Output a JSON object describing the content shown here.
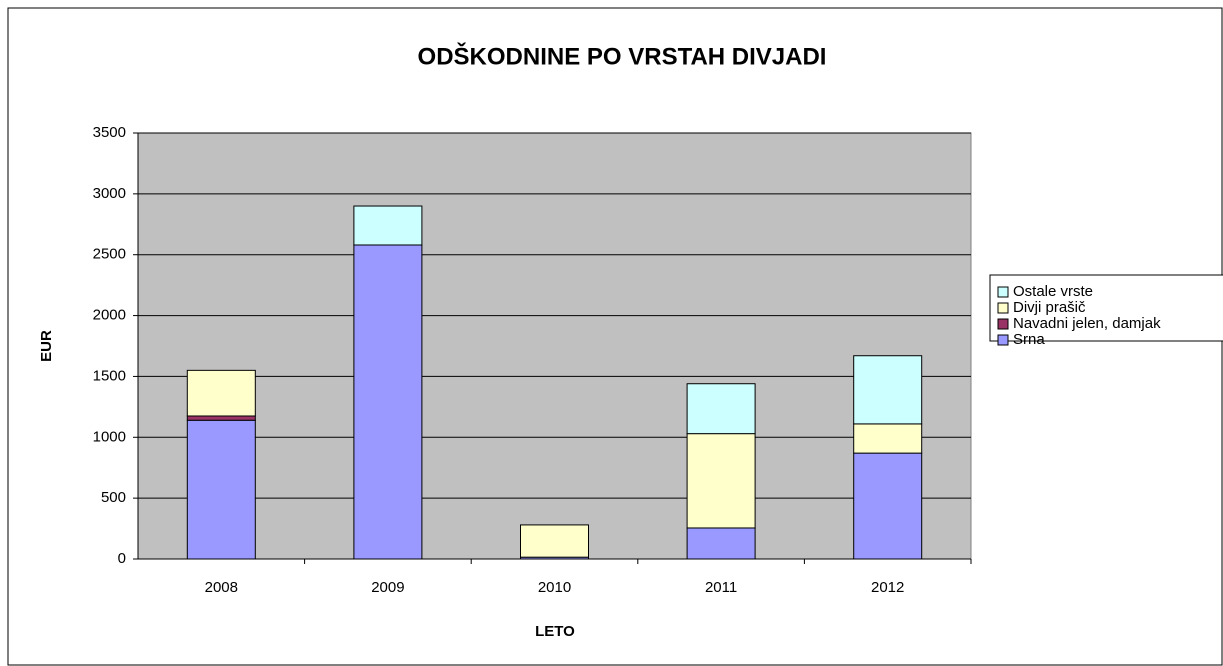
{
  "chart_data": {
    "type": "stacked_bar",
    "title": "ODŠKODNINE PO VRSTAH DIVJADI",
    "x_label": "LETO",
    "y_label": "EUR",
    "categories": [
      "2008",
      "2009",
      "2010",
      "2011",
      "2012"
    ],
    "series": [
      {
        "name": "Srna",
        "color": "#9999ff",
        "values": [
          1140,
          2580,
          15,
          255,
          870
        ]
      },
      {
        "name": "Navadni jelen, damjak",
        "color": "#993366",
        "values": [
          35,
          0,
          0,
          0,
          0
        ]
      },
      {
        "name": "Divji prašič",
        "color": "#ffffcc",
        "values": [
          375,
          0,
          265,
          775,
          240
        ]
      },
      {
        "name": "Ostale vrste",
        "color": "#ccffff",
        "values": [
          0,
          320,
          0,
          410,
          560
        ]
      }
    ],
    "ylim": [
      0,
      3500
    ],
    "yticks": [
      0,
      500,
      1000,
      1500,
      2000,
      2500,
      3000,
      3500
    ],
    "grid": true,
    "legend": "right",
    "plot_background": "#c0c0c0"
  }
}
